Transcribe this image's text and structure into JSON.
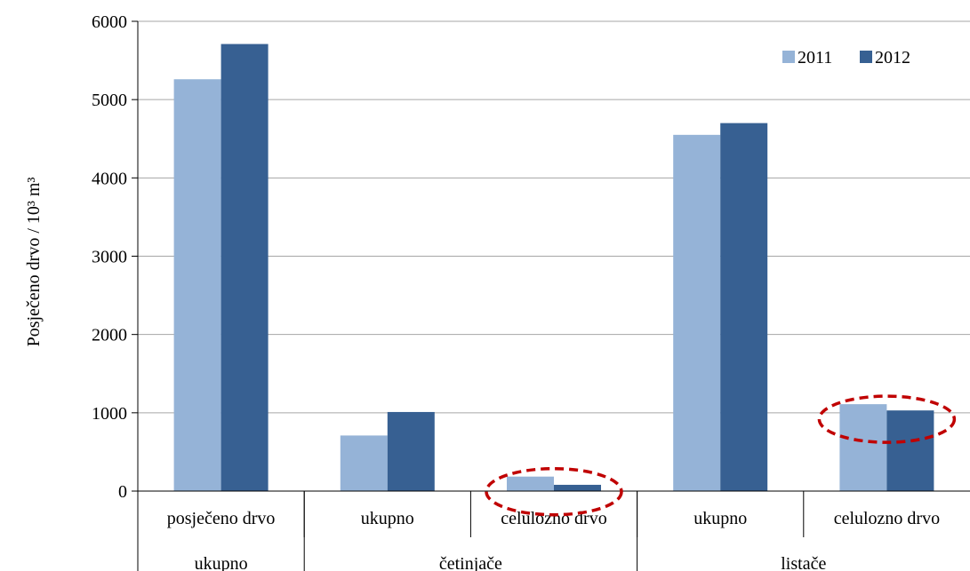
{
  "chart_data": {
    "type": "bar",
    "ylabel": "Posječeno drvo / 10³ m³",
    "ylim": [
      0,
      6000
    ],
    "yticks": [
      "0",
      "1000",
      "2000",
      "3000",
      "4000",
      "5000",
      "6000"
    ],
    "grid": true,
    "legend_position": "top-right",
    "categories": [
      "posječeno drvo",
      "ukupno",
      "celulozno drvo",
      "ukupno",
      "celulozno drvo"
    ],
    "groups": [
      {
        "label": "ukupno",
        "span": 1
      },
      {
        "label": "četinjače",
        "span": 2
      },
      {
        "label": "listače",
        "span": 2
      }
    ],
    "series": [
      {
        "name": "2011",
        "color": "#95b3d7",
        "values": [
          5260,
          710,
          185,
          4550,
          1110
        ]
      },
      {
        "name": "2012",
        "color": "#376092",
        "values": [
          5710,
          1010,
          80,
          4700,
          1030
        ]
      }
    ],
    "highlights": [
      {
        "category_index": 2,
        "shape": "dashed-ellipse",
        "color": "#c00000"
      },
      {
        "category_index": 4,
        "shape": "dashed-ellipse",
        "color": "#c00000"
      }
    ]
  }
}
